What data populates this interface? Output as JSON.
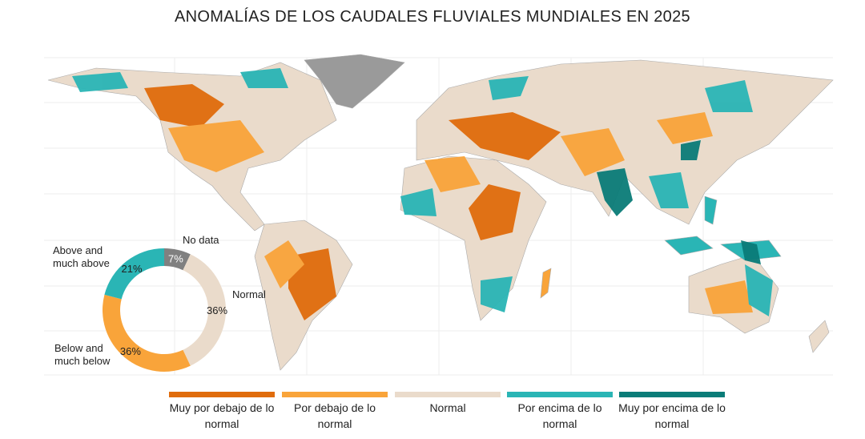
{
  "title": "ANOMALÍAS DE LOS CAUDALES FLUVIALES MUNDIALES EN 2025",
  "legend": [
    {
      "label": "Muy por debajo de lo normal",
      "color": "#e06c0c"
    },
    {
      "label": "Por debajo de lo normal",
      "color": "#f9a43a"
    },
    {
      "label": "Normal",
      "color": "#eadbcb"
    },
    {
      "label": "Por encima de lo normal",
      "color": "#2ab5b5"
    },
    {
      "label": "Muy por encima de lo normal",
      "color": "#0a7c78"
    }
  ],
  "chart_data": {
    "type": "donut",
    "categories": [
      "No data",
      "Normal",
      "Below and much below",
      "Above and much above"
    ],
    "values": [
      7,
      36,
      36,
      21
    ],
    "value_labels": [
      "7%",
      "36%",
      "36%",
      "21%"
    ],
    "colors": [
      "#808080",
      "#eadbcb",
      "#f9a43a",
      "#2ab5b5"
    ]
  }
}
